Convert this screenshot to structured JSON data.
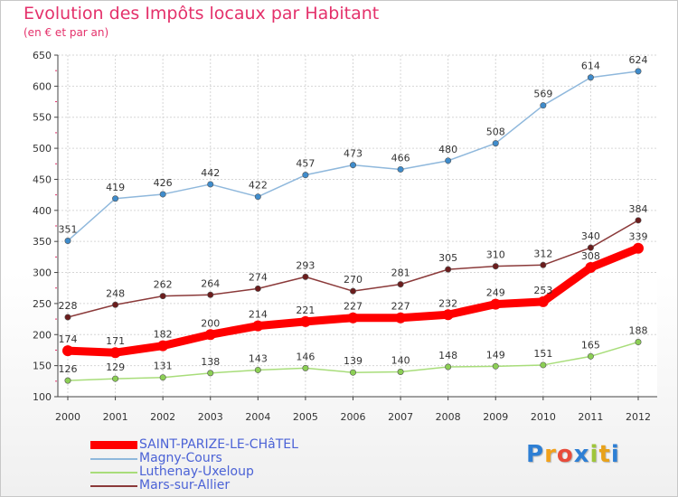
{
  "header": {
    "title": "Evolution des Impôts locaux par Habitant",
    "subtitle": "(en € et par an)"
  },
  "logo": {
    "text": "Proxiti",
    "colors": [
      "#2e7fd4",
      "#f2a11a",
      "#e84b3a",
      "#2e7fd4",
      "#9fc63a",
      "#e8a21a",
      "#2e7fd4"
    ]
  },
  "chart_data": {
    "type": "line",
    "x": [
      "2000",
      "2001",
      "2002",
      "2003",
      "2004",
      "2005",
      "2006",
      "2007",
      "2008",
      "2009",
      "2010",
      "2011",
      "2012"
    ],
    "ylim": [
      100,
      650
    ],
    "yticks": [
      100,
      150,
      200,
      250,
      300,
      350,
      400,
      450,
      500,
      550,
      600,
      650
    ],
    "grid": true,
    "legend_placement": "bottom-left",
    "series": [
      {
        "name": "SAINT-PARIZE-LE-CHâTEL",
        "color": "#ff0000",
        "marker": "#ff0000",
        "thick": true,
        "values": [
          174,
          171,
          182,
          200,
          214,
          221,
          227,
          227,
          232,
          249,
          253,
          308,
          339
        ]
      },
      {
        "name": "Magny-Cours",
        "color": "#8fb8dc",
        "marker": "#3f8ccc",
        "thick": false,
        "values": [
          351,
          419,
          426,
          442,
          422,
          457,
          473,
          466,
          480,
          508,
          569,
          614,
          624
        ]
      },
      {
        "name": "Luthenay-Uxeloup",
        "color": "#a8dd7a",
        "marker": "#8ccf55",
        "thick": false,
        "values": [
          126,
          129,
          131,
          138,
          143,
          146,
          139,
          140,
          148,
          149,
          151,
          165,
          188
        ]
      },
      {
        "name": "Mars-sur-Allier",
        "color": "#8b3a3a",
        "marker": "#6b1d1d",
        "thick": false,
        "values": [
          228,
          248,
          262,
          264,
          274,
          293,
          270,
          281,
          305,
          310,
          312,
          340,
          384
        ]
      }
    ]
  }
}
